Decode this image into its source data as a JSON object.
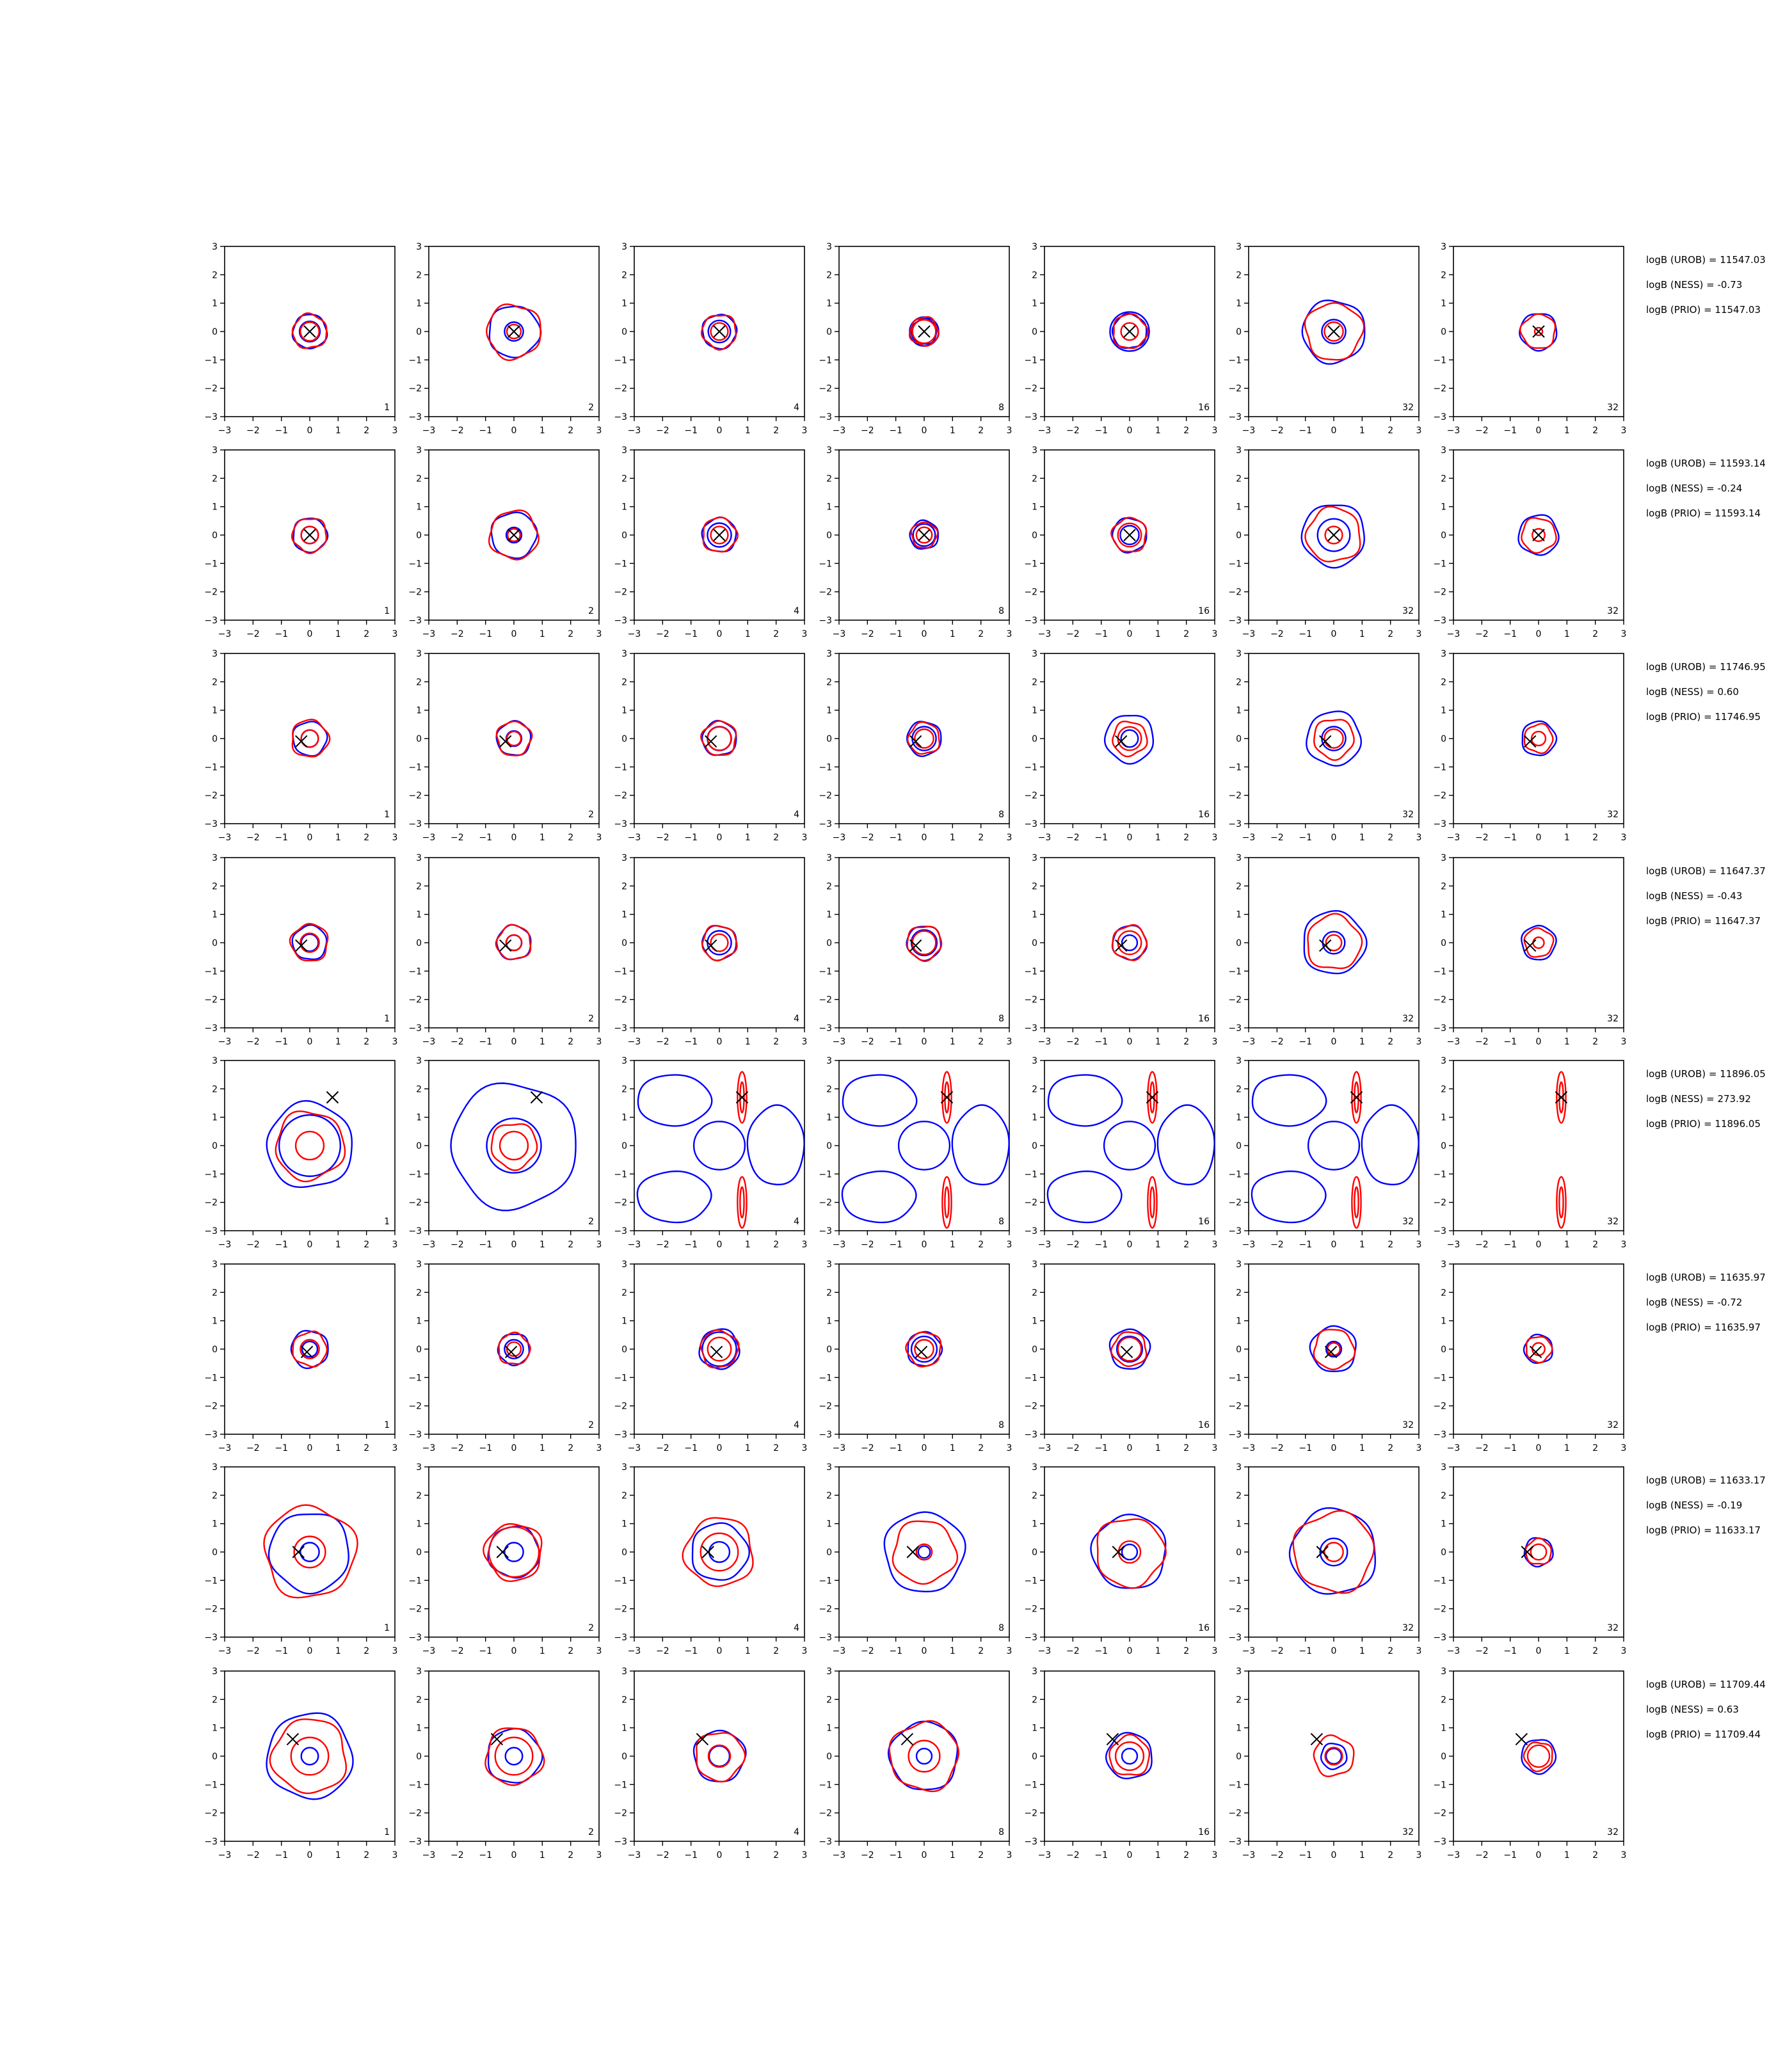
{
  "colors": {
    "blue": "#0000ff",
    "red": "#ff0000",
    "axis": "#000000",
    "marker": "#000000"
  },
  "chart_data": {
    "type": "contour-grid",
    "xlim": [
      -3,
      3
    ],
    "ylim": [
      -3,
      3
    ],
    "ticks": [
      "−3",
      "−2",
      "−1",
      "0",
      "1",
      "2",
      "3"
    ],
    "tick_values": [
      -3,
      -2,
      -1,
      0,
      1,
      2,
      3
    ],
    "columns": [
      "1",
      "2",
      "4",
      "8",
      "16",
      "32",
      "32"
    ],
    "legend": "none",
    "grid": false,
    "rows": [
      {
        "marker": [
          0,
          0
        ],
        "stats": [
          "logB (UROB) = 11547.03",
          "logB (NESS) = -0.73",
          "logB (PRIO) = 11547.03"
        ],
        "contours": [
          [
            [
              0.6,
              0.6
            ],
            [
              0.9,
              0.95
            ],
            [
              0.6,
              0.6
            ],
            [
              0.45,
              0.5
            ],
            [
              0.6,
              0.6
            ],
            [
              1.1,
              1.0
            ],
            [
              0.65,
              0.6
            ]
          ],
          [
            [
              0.6,
              0.6
            ],
            [
              0.55,
              0.45
            ],
            [
              0.65,
              0.55
            ],
            [
              0.85,
              0.75
            ],
            [
              1.15,
              0.55
            ],
            [
              0.7,
              0.6
            ],
            [
              null,
              0.25
            ]
          ]
        ]
      },
      {
        "marker": [
          0,
          0
        ],
        "stats": [
          "logB (UROB) = 11593.14",
          "logB (NESS) = -0.24",
          "logB (PRIO) = 11593.14"
        ],
        "contours": [
          [
            [
              0.6,
              0.6
            ],
            [
              0.8,
              0.85
            ],
            [
              0.6,
              0.6
            ],
            [
              0.5,
              0.45
            ],
            [
              0.6,
              0.6
            ],
            [
              1.1,
              0.95
            ],
            [
              0.7,
              0.6
            ]
          ],
          [
            [
              0.5,
              0.55
            ],
            [
              0.45,
              0.4
            ],
            [
              0.7,
              0.55
            ],
            [
              0.65,
              0.5
            ],
            [
              0.55,
              0.75
            ],
            [
              0.95,
              0.55
            ],
            [
              null,
              0.4
            ]
          ]
        ]
      },
      {
        "marker": [
          -0.3,
          -0.1
        ],
        "stats": [
          "logB (UROB) = 11746.95",
          "logB (NESS) = 0.60",
          "logB (PRIO) = 11746.95"
        ],
        "contours": [
          [
            [
              0.6,
              0.65
            ],
            [
              0.6,
              0.6
            ],
            [
              0.6,
              0.6
            ],
            [
              0.6,
              0.55
            ],
            [
              0.85,
              0.6
            ],
            [
              0.95,
              0.7
            ],
            [
              0.6,
              0.5
            ]
          ],
          [
            [
              0.5,
              0.55
            ],
            [
              0.45,
              0.45
            ],
            [
              0.7,
              0.75
            ],
            [
              0.7,
              0.6
            ],
            [
              0.5,
              0.75
            ],
            [
              0.7,
              0.6
            ],
            [
              null,
              0.45
            ]
          ]
        ]
      },
      {
        "marker": [
          -0.3,
          -0.1
        ],
        "stats": [
          "logB (UROB) = 11647.37",
          "logB (NESS) = -0.43",
          "logB (PRIO) = 11647.37"
        ],
        "contours": [
          [
            [
              0.6,
              0.65
            ],
            [
              0.6,
              0.6
            ],
            [
              0.6,
              0.6
            ],
            [
              0.6,
              0.6
            ],
            [
              0.6,
              0.6
            ],
            [
              1.1,
              0.95
            ],
            [
              0.6,
              0.5
            ]
          ],
          [
            [
              0.5,
              0.6
            ],
            [
              0.45,
              0.5
            ],
            [
              0.7,
              0.55
            ],
            [
              0.75,
              0.75
            ],
            [
              0.45,
              0.75
            ],
            [
              0.65,
              0.5
            ],
            [
              null,
              0.35
            ]
          ]
        ]
      },
      {
        "marker": [
          0.8,
          1.7
        ],
        "stats": [
          "logB (UROB) = 11896.05",
          "logB (NESS) = 273.92",
          "logB (PRIO) = 11896.05"
        ],
        "contours": [
          [
            [
              1.5,
              1.2
            ],
            [
              2.2,
              0.8
            ],
            [
              2.2,
              1.0
            ],
            [
              2.3,
              1.0
            ],
            [
              2.3,
              1.0
            ],
            [
              2.3,
              1.0
            ],
            [
              null,
              null
            ]
          ],
          [
            [
              1.8,
              0.9
            ],
            [
              1.6,
              0.9
            ],
            [
              0.6,
              0.9
            ],
            [
              0.55,
              0.9
            ],
            [
              0.55,
              0.9
            ],
            [
              0.55,
              0.9
            ],
            [
              0.6,
              0.9
            ]
          ]
        ]
      },
      {
        "marker": [
          -0.1,
          -0.1
        ],
        "stats": [
          "logB (UROB) = 11635.97",
          "logB (NESS) = -0.72",
          "logB (PRIO) = 11635.97"
        ],
        "contours": [
          [
            [
              0.65,
              0.6
            ],
            [
              0.55,
              0.55
            ],
            [
              0.7,
              0.65
            ],
            [
              0.6,
              0.6
            ],
            [
              0.7,
              0.6
            ],
            [
              0.8,
              0.7
            ],
            [
              0.5,
              0.45
            ]
          ],
          [
            [
              0.45,
              0.6
            ],
            [
              0.55,
              0.45
            ],
            [
              1.0,
              0.75
            ],
            [
              0.75,
              0.6
            ],
            [
              0.75,
              0.75
            ],
            [
              0.45,
              0.4
            ],
            [
              null,
              0.4
            ]
          ]
        ]
      },
      {
        "marker": [
          -0.4,
          0
        ],
        "stats": [
          "logB (UROB) = 11633.17",
          "logB (NESS) = -0.19",
          "logB (PRIO) = 11633.17"
        ],
        "contours": [
          [
            [
              1.4,
              1.6
            ],
            [
              0.9,
              1.0
            ],
            [
              1.0,
              1.2
            ],
            [
              1.4,
              1.1
            ],
            [
              1.3,
              1.2
            ],
            [
              1.5,
              1.4
            ],
            [
              0.5,
              0.45
            ]
          ],
          [
            [
              0.55,
              1.0
            ],
            [
              0.55,
              1.6
            ],
            [
              0.6,
              1.2
            ],
            [
              0.35,
              0.5
            ],
            [
              0.45,
              0.7
            ],
            [
              0.8,
              0.6
            ],
            [
              null,
              0.5
            ]
          ]
        ]
      },
      {
        "marker": [
          -0.6,
          0.6
        ],
        "stats": [
          "logB (UROB) = 11709.44",
          "logB (NESS) = 0.63",
          "logB (PRIO) = 11709.44"
        ],
        "contours": [
          [
            [
              1.5,
              1.3
            ],
            [
              0.95,
              1.0
            ],
            [
              0.9,
              0.85
            ],
            [
              1.2,
              1.2
            ],
            [
              0.8,
              0.7
            ],
            [
              0.45,
              0.7
            ],
            [
              0.6,
              0.5
            ]
          ],
          [
            [
              0.5,
              1.2
            ],
            [
              0.5,
              1.2
            ],
            [
              0.6,
              0.7
            ],
            [
              0.45,
              1.0
            ],
            [
              0.45,
              0.9
            ],
            [
              0.45,
              0.55
            ],
            [
              null,
              0.7
            ]
          ]
        ]
      }
    ]
  }
}
